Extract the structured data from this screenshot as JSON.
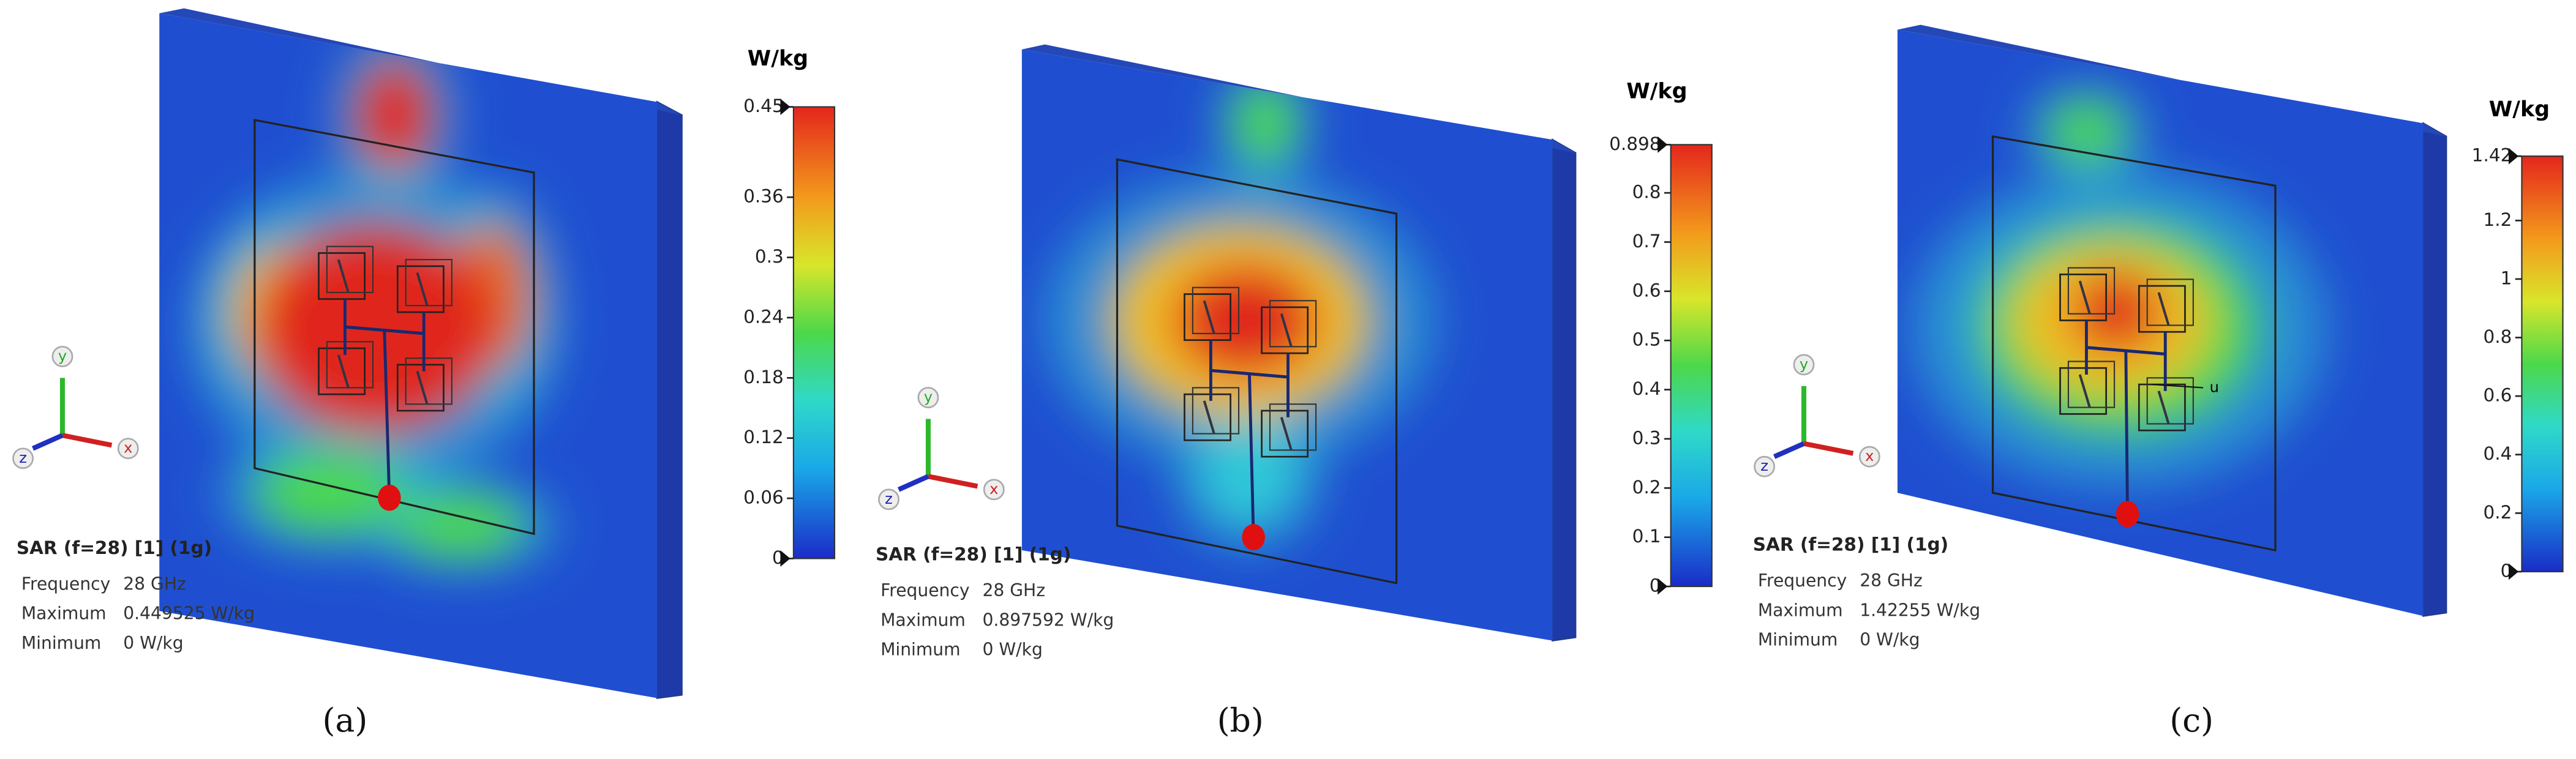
{
  "panels": [
    {
      "unit": "W/kg",
      "colorbar_ticks": [
        0.45,
        0.36,
        0.3,
        0.24,
        0.18,
        0.12,
        0.06,
        0
      ],
      "info": {
        "title": "SAR (f=28) [1] (1g)",
        "rows": [
          {
            "label": "Frequency",
            "value": "28 GHz"
          },
          {
            "label": "Maximum",
            "value": "0.449525 W/kg"
          },
          {
            "label": "Minimum",
            "value": "0 W/kg"
          }
        ]
      },
      "axes": {
        "y": "y",
        "z": "z",
        "x": "x"
      },
      "caption": "(a)"
    },
    {
      "unit": "W/kg",
      "colorbar_ticks": [
        0.898,
        0.8,
        0.7,
        0.6,
        0.5,
        0.4,
        0.3,
        0.2,
        0.1,
        0
      ],
      "info": {
        "title": "SAR (f=28) [1] (1g)",
        "rows": [
          {
            "label": "Frequency",
            "value": "28 GHz"
          },
          {
            "label": "Maximum",
            "value": "0.897592 W/kg"
          },
          {
            "label": "Minimum",
            "value": "0 W/kg"
          }
        ]
      },
      "axes": {
        "y": "y",
        "z": "z",
        "x": "x"
      },
      "caption": "(b)"
    },
    {
      "unit": "W/kg",
      "colorbar_ticks": [
        1.42,
        1.2,
        1,
        0.8,
        0.6,
        0.4,
        0.2,
        0
      ],
      "info": {
        "title": "SAR (f=28) [1] (1g)",
        "rows": [
          {
            "label": "Frequency",
            "value": "28 GHz"
          },
          {
            "label": "Maximum",
            "value": "1.42255 W/kg"
          },
          {
            "label": "Minimum",
            "value": "0 W/kg"
          }
        ]
      },
      "axes": {
        "y": "y",
        "z": "z",
        "x": "x"
      },
      "marker_label": "u",
      "caption": "(c)"
    }
  ]
}
